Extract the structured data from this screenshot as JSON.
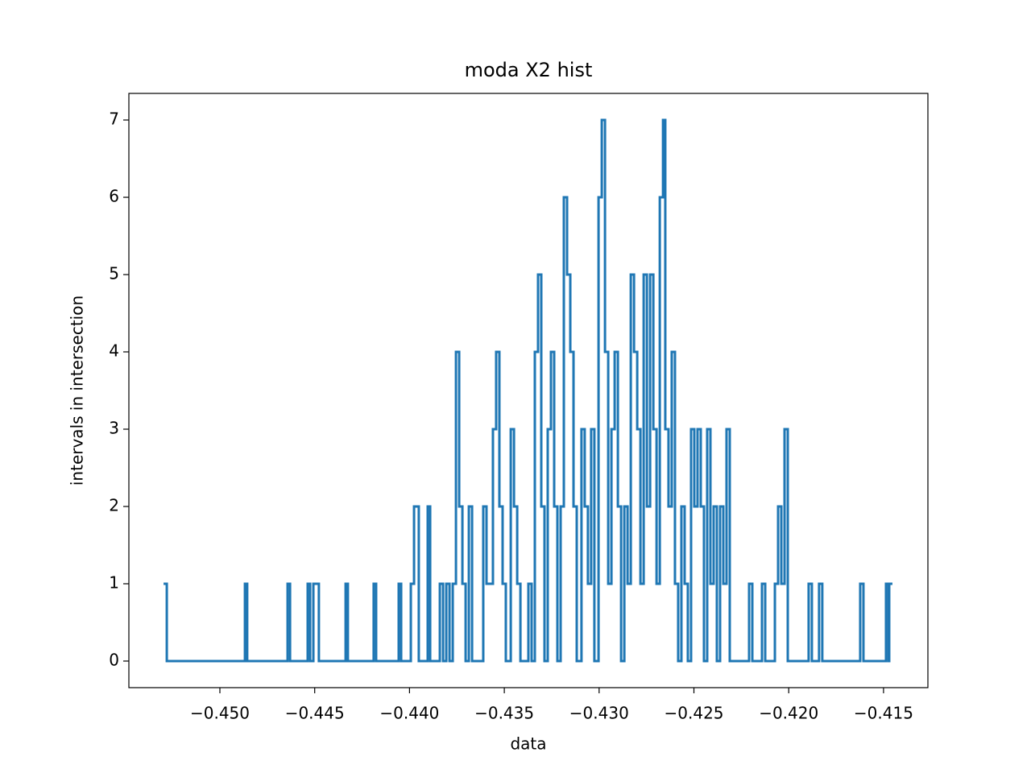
{
  "chart_data": {
    "type": "step",
    "title": "moda X2 hist",
    "x_label": "data",
    "y_label": "intervals in intersection",
    "color": "#1f77b4",
    "x": [
      -0.45297,
      -0.4528,
      -0.44868,
      -0.44856,
      -0.44643,
      -0.4463,
      -0.44537,
      -0.44524,
      -0.44507,
      -0.44478,
      -0.44337,
      -0.44325,
      -0.44189,
      -0.44176,
      -0.44057,
      -0.44044,
      -0.43993,
      -0.43976,
      -0.43951,
      -0.43904,
      -0.43891,
      -0.4384,
      -0.43823,
      -0.43806,
      -0.43789,
      -0.43772,
      -0.43755,
      -0.43738,
      -0.43721,
      -0.43704,
      -0.43687,
      -0.4367,
      -0.43611,
      -0.43594,
      -0.4356,
      -0.43543,
      -0.43526,
      -0.43509,
      -0.43492,
      -0.43466,
      -0.43449,
      -0.43432,
      -0.43415,
      -0.43373,
      -0.43356,
      -0.43339,
      -0.43322,
      -0.43305,
      -0.43288,
      -0.43271,
      -0.43254,
      -0.43237,
      -0.4322,
      -0.43203,
      -0.43186,
      -0.43169,
      -0.43152,
      -0.43135,
      -0.43118,
      -0.43093,
      -0.43076,
      -0.43059,
      -0.43042,
      -0.43025,
      -0.43003,
      -0.42986,
      -0.42969,
      -0.42952,
      -0.42935,
      -0.42918,
      -0.42901,
      -0.42884,
      -0.42867,
      -0.4285,
      -0.42833,
      -0.42816,
      -0.42799,
      -0.42782,
      -0.42765,
      -0.42748,
      -0.42731,
      -0.42714,
      -0.42697,
      -0.4268,
      -0.42663,
      -0.42651,
      -0.42634,
      -0.42617,
      -0.426,
      -0.42583,
      -0.42566,
      -0.42549,
      -0.42532,
      -0.42515,
      -0.42498,
      -0.42481,
      -0.42464,
      -0.42447,
      -0.4243,
      -0.42413,
      -0.42396,
      -0.42379,
      -0.42362,
      -0.42345,
      -0.42328,
      -0.42311,
      -0.42209,
      -0.42192,
      -0.42141,
      -0.42124,
      -0.42073,
      -0.42056,
      -0.42039,
      -0.42022,
      -0.42005,
      -0.41895,
      -0.41878,
      -0.4184,
      -0.41823,
      -0.41623,
      -0.41606,
      -0.41487,
      -0.41474,
      -0.4147,
      -0.41453
    ],
    "values": [
      1,
      0,
      1,
      0,
      1,
      0,
      1,
      0,
      1,
      0,
      1,
      0,
      1,
      0,
      1,
      0,
      1,
      2,
      0,
      2,
      0,
      1,
      0,
      1,
      0,
      1,
      4,
      2,
      1,
      0,
      2,
      0,
      2,
      1,
      3,
      4,
      2,
      1,
      0,
      3,
      2,
      1,
      0,
      1,
      0,
      4,
      5,
      2,
      0,
      3,
      4,
      2,
      0,
      2,
      6,
      5,
      4,
      2,
      0,
      3,
      2,
      1,
      3,
      0,
      6,
      7,
      4,
      1,
      3,
      4,
      2,
      0,
      2,
      1,
      5,
      4,
      3,
      1,
      5,
      2,
      5,
      3,
      1,
      6,
      7,
      3,
      2,
      4,
      1,
      0,
      2,
      1,
      0,
      3,
      2,
      3,
      2,
      0,
      3,
      1,
      2,
      0,
      2,
      1,
      3,
      0,
      1,
      0,
      1,
      0,
      1,
      2,
      1,
      3,
      0,
      1,
      0,
      1,
      0,
      1,
      0,
      1,
      0,
      1,
      1
    ],
    "xlim": [
      -0.4548,
      -0.41266
    ],
    "ylim": [
      -0.344,
      7.344
    ],
    "xticks": [
      {
        "value": -0.45,
        "label": "−0.450"
      },
      {
        "value": -0.445,
        "label": "−0.445"
      },
      {
        "value": -0.44,
        "label": "−0.440"
      },
      {
        "value": -0.435,
        "label": "−0.435"
      },
      {
        "value": -0.43,
        "label": "−0.430"
      },
      {
        "value": -0.425,
        "label": "−0.425"
      },
      {
        "value": -0.42,
        "label": "−0.420"
      },
      {
        "value": -0.415,
        "label": "−0.415"
      }
    ],
    "yticks": [
      0,
      1,
      2,
      3,
      4,
      5,
      6,
      7
    ]
  }
}
